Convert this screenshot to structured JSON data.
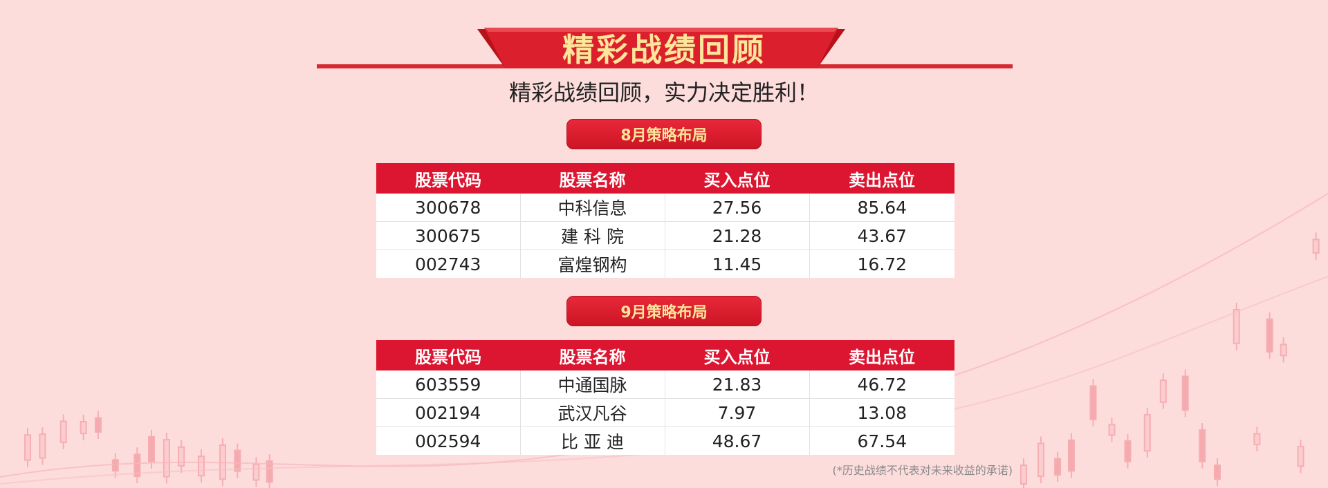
{
  "header": {
    "ribbon_title": "精彩战绩回顾",
    "subtitle": "精彩战绩回顾，实力决定胜利！"
  },
  "sections": [
    {
      "title": "8月策略布局",
      "columns": [
        "股票代码",
        "股票名称",
        "买入点位",
        "卖出点位"
      ],
      "rows": [
        [
          "300678",
          "中科信息",
          "27.56",
          "85.64"
        ],
        [
          "300675",
          "建 科 院",
          "21.28",
          "43.67"
        ],
        [
          "002743",
          "富煌钢构",
          "11.45",
          "16.72"
        ]
      ]
    },
    {
      "title": "9月策略布局",
      "columns": [
        "股票代码",
        "股票名称",
        "买入点位",
        "卖出点位"
      ],
      "rows": [
        [
          "603559",
          "中通国脉",
          "21.83",
          "46.72"
        ],
        [
          "002194",
          "武汉凡谷",
          "7.97",
          "13.08"
        ],
        [
          "002594",
          "比 亚 迪",
          "48.67",
          "67.54"
        ]
      ]
    }
  ],
  "footer": {
    "disclaimer": "(*历史战绩不代表对未来收益的承诺)"
  },
  "colors": {
    "background": "#fddcdc",
    "accent_red": "#dc1530",
    "title_gold": "#fde59a"
  }
}
